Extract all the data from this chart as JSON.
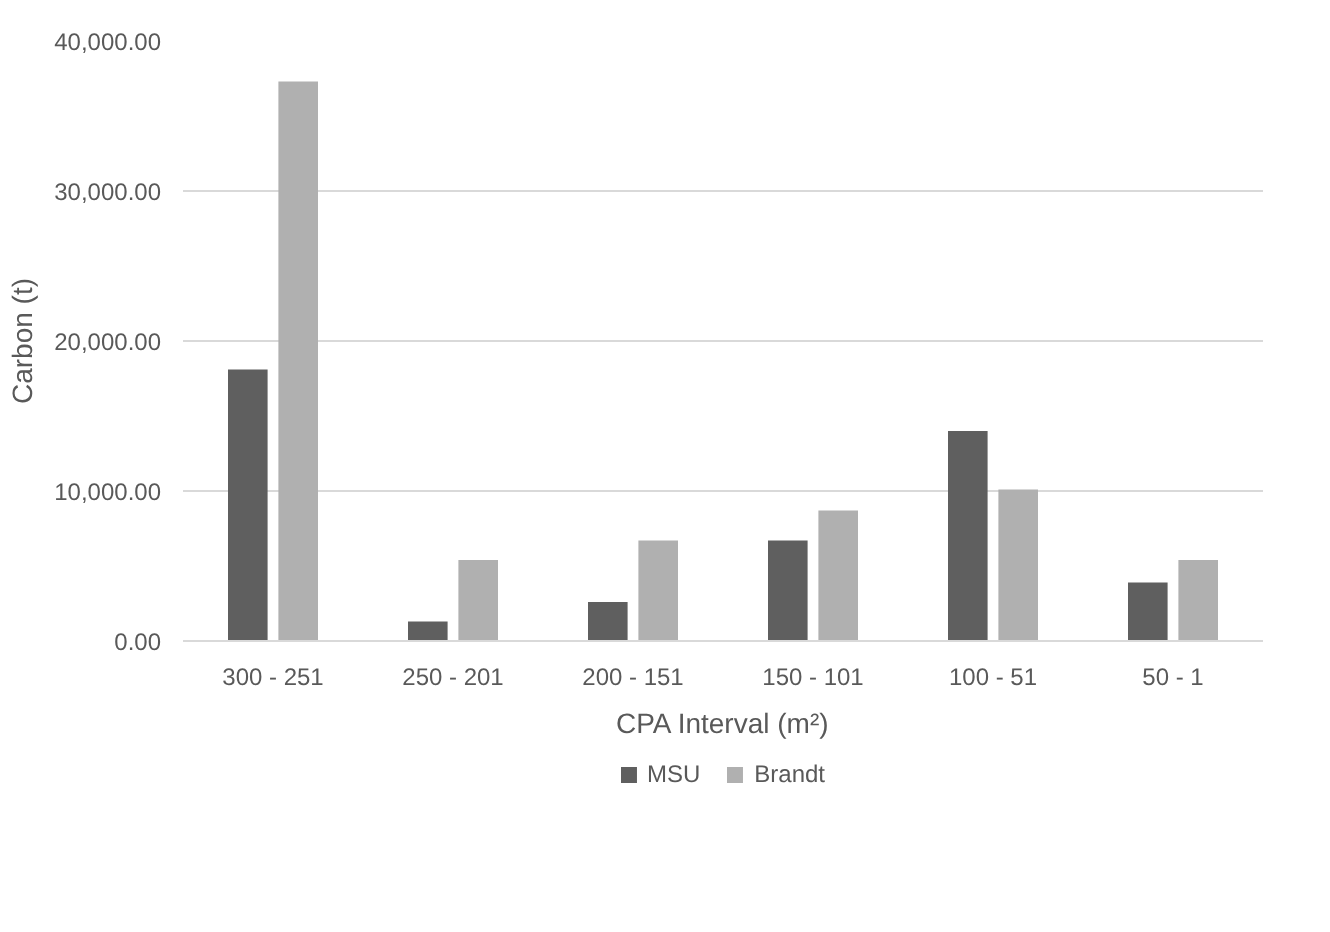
{
  "chart_data": {
    "type": "bar",
    "xlabel": "CPA Interval (m²)",
    "ylabel": "Carbon (t)",
    "categories": [
      "300 - 251",
      "250 - 201",
      "200 - 151",
      "150 - 101",
      "100 - 51",
      "50 - 1"
    ],
    "series": [
      {
        "name": "MSU",
        "color": "#5f5f5f",
        "values": [
          18100,
          1300,
          2600,
          6700,
          14000,
          3900
        ]
      },
      {
        "name": "Brandt",
        "color": "#b0b0b0",
        "values": [
          37300,
          5400,
          6700,
          8700,
          10100,
          5400
        ]
      }
    ],
    "ylim": [
      0,
      40000
    ],
    "yticks": [
      {
        "value": 0,
        "label": "0.00"
      },
      {
        "value": 10000,
        "label": "10,000.00"
      },
      {
        "value": 20000,
        "label": "20,000.00"
      },
      {
        "value": 30000,
        "label": "30,000.00"
      },
      {
        "value": 40000,
        "label": "40,000.00"
      }
    ],
    "grid": "y",
    "legend": "bottom"
  }
}
